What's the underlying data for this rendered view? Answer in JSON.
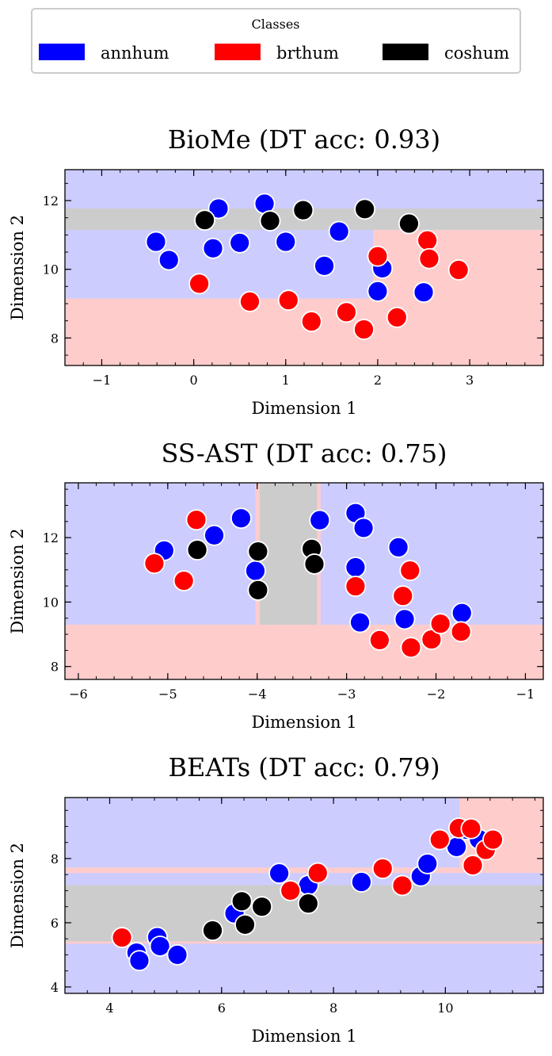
{
  "legend": {
    "title": "Classes",
    "entries": [
      {
        "label": "annhum",
        "color": "#0000ff"
      },
      {
        "label": "brthum",
        "color": "#ff0000"
      },
      {
        "label": "coshum",
        "color": "#000000"
      }
    ]
  },
  "region_colors": {
    "annhum": "#ccccff",
    "brthum": "#ffcccc",
    "coshum": "#cccccc"
  },
  "chart_data": [
    {
      "type": "scatter",
      "title": "BioMe (DT acc: 0.93)",
      "xlabel": "Dimension 1",
      "ylabel": "Dimension 2",
      "xlim": [
        -1.4,
        3.8
      ],
      "ylim": [
        7.2,
        12.9
      ],
      "xticks": [
        -1,
        0,
        1,
        2,
        3
      ],
      "yticks": [
        8,
        10,
        12
      ],
      "decision_regions": [
        {
          "class": "annhum",
          "x": [
            -1.4,
            3.8
          ],
          "y": [
            7.2,
            12.9
          ]
        },
        {
          "class": "brthum",
          "x": [
            -1.4,
            3.8
          ],
          "y": [
            7.2,
            9.15
          ]
        },
        {
          "class": "brthum",
          "x": [
            1.95,
            3.8
          ],
          "y": [
            9.15,
            11.15
          ]
        },
        {
          "class": "coshum",
          "x": [
            -1.4,
            3.8
          ],
          "y": [
            11.15,
            11.77
          ]
        }
      ],
      "series": [
        {
          "name": "annhum",
          "points": [
            [
              -0.41,
              10.8
            ],
            [
              -0.27,
              10.27
            ],
            [
              0.27,
              11.77
            ],
            [
              0.21,
              10.61
            ],
            [
              0.5,
              10.77
            ],
            [
              0.77,
              11.91
            ],
            [
              1.0,
              10.8
            ],
            [
              1.42,
              10.1
            ],
            [
              1.58,
              11.1
            ],
            [
              2.05,
              10.03
            ],
            [
              2.0,
              9.36
            ],
            [
              2.5,
              9.33
            ]
          ]
        },
        {
          "name": "brthum",
          "points": [
            [
              0.06,
              9.58
            ],
            [
              0.61,
              9.06
            ],
            [
              1.03,
              9.1
            ],
            [
              1.28,
              8.48
            ],
            [
              1.66,
              8.75
            ],
            [
              1.85,
              8.25
            ],
            [
              2.21,
              8.6
            ],
            [
              2.0,
              10.38
            ],
            [
              2.54,
              10.84
            ],
            [
              2.56,
              10.31
            ],
            [
              2.88,
              9.98
            ]
          ]
        },
        {
          "name": "coshum",
          "points": [
            [
              0.12,
              11.43
            ],
            [
              0.83,
              11.41
            ],
            [
              1.19,
              11.72
            ],
            [
              1.86,
              11.75
            ],
            [
              2.34,
              11.33
            ]
          ]
        }
      ]
    },
    {
      "type": "scatter",
      "title": "SS-AST (DT acc: 0.75)",
      "xlabel": "Dimension 1",
      "ylabel": "Dimension 2",
      "xlim": [
        -6.15,
        -0.8
      ],
      "ylim": [
        7.6,
        13.7
      ],
      "xticks": [
        -6,
        -5,
        -4,
        -3,
        -2,
        -1
      ],
      "yticks": [
        8,
        10,
        12
      ],
      "decision_regions": [
        {
          "class": "annhum",
          "x": [
            -6.15,
            -0.8
          ],
          "y": [
            7.6,
            13.7
          ]
        },
        {
          "class": "brthum",
          "x": [
            -6.15,
            -0.8
          ],
          "y": [
            7.6,
            9.3
          ]
        },
        {
          "class": "brthum",
          "x": [
            -4.02,
            -3.97
          ],
          "y": [
            9.3,
            13.7
          ]
        },
        {
          "class": "brthum",
          "x": [
            -3.33,
            -3.29
          ],
          "y": [
            9.3,
            13.7
          ]
        },
        {
          "class": "coshum",
          "x": [
            -3.97,
            -3.33
          ],
          "y": [
            9.3,
            13.7
          ]
        }
      ],
      "series": [
        {
          "name": "annhum",
          "points": [
            [
              -5.04,
              11.6
            ],
            [
              -4.48,
              12.07
            ],
            [
              -4.18,
              12.6
            ],
            [
              -4.02,
              10.97
            ],
            [
              -3.3,
              12.54
            ],
            [
              -2.9,
              12.76
            ],
            [
              -2.81,
              12.3
            ],
            [
              -2.9,
              11.08
            ],
            [
              -2.85,
              9.37
            ],
            [
              -2.42,
              11.7
            ],
            [
              -2.35,
              9.47
            ],
            [
              -1.71,
              9.66
            ]
          ]
        },
        {
          "name": "brthum",
          "points": [
            [
              -5.15,
              11.2
            ],
            [
              -4.68,
              12.55
            ],
            [
              -4.82,
              10.66
            ],
            [
              -2.9,
              10.49
            ],
            [
              -2.63,
              8.82
            ],
            [
              -2.37,
              10.19
            ],
            [
              -2.29,
              10.98
            ],
            [
              -2.28,
              8.59
            ],
            [
              -2.05,
              8.84
            ],
            [
              -1.95,
              9.33
            ],
            [
              -1.72,
              9.08
            ]
          ]
        },
        {
          "name": "coshum",
          "points": [
            [
              -4.67,
              11.62
            ],
            [
              -3.99,
              11.57
            ],
            [
              -3.99,
              10.37
            ],
            [
              -3.39,
              11.65
            ],
            [
              -3.36,
              11.18
            ]
          ]
        }
      ]
    },
    {
      "type": "scatter",
      "title": "BEATs (DT acc: 0.79)",
      "xlabel": "Dimension 1",
      "ylabel": "Dimension 2",
      "xlim": [
        3.2,
        11.75
      ],
      "ylim": [
        3.8,
        9.9
      ],
      "xticks": [
        4,
        6,
        8,
        10
      ],
      "yticks": [
        4,
        6,
        8
      ],
      "decision_regions": [
        {
          "class": "annhum",
          "x": [
            3.2,
            11.75
          ],
          "y": [
            3.8,
            9.9
          ]
        },
        {
          "class": "brthum",
          "x": [
            3.2,
            10.25
          ],
          "y": [
            7.55,
            7.72
          ]
        },
        {
          "class": "brthum",
          "x": [
            3.2,
            11.75
          ],
          "y": [
            5.35,
            5.42
          ]
        },
        {
          "class": "brthum",
          "x": [
            10.25,
            11.75
          ],
          "y": [
            7.55,
            9.9
          ]
        },
        {
          "class": "coshum",
          "x": [
            3.2,
            11.75
          ],
          "y": [
            5.42,
            7.17
          ]
        }
      ],
      "series": [
        {
          "name": "annhum",
          "points": [
            [
              4.48,
              5.07
            ],
            [
              4.53,
              4.82
            ],
            [
              4.85,
              5.55
            ],
            [
              4.9,
              5.27
            ],
            [
              5.21,
              5.0
            ],
            [
              6.23,
              6.29
            ],
            [
              7.03,
              7.54
            ],
            [
              7.55,
              7.17
            ],
            [
              8.5,
              7.27
            ],
            [
              9.56,
              7.45
            ],
            [
              9.68,
              7.84
            ],
            [
              10.2,
              8.36
            ],
            [
              10.38,
              8.9
            ],
            [
              10.6,
              8.6
            ]
          ]
        },
        {
          "name": "brthum",
          "points": [
            [
              4.22,
              5.54
            ],
            [
              7.23,
              7.0
            ],
            [
              7.72,
              7.55
            ],
            [
              8.88,
              7.69
            ],
            [
              9.23,
              7.16
            ],
            [
              9.9,
              8.59
            ],
            [
              10.24,
              8.95
            ],
            [
              10.46,
              8.93
            ],
            [
              10.49,
              7.79
            ],
            [
              10.72,
              8.27
            ],
            [
              10.85,
              8.59
            ]
          ]
        },
        {
          "name": "coshum",
          "points": [
            [
              5.84,
              5.76
            ],
            [
              6.36,
              6.67
            ],
            [
              6.42,
              5.94
            ],
            [
              6.72,
              6.5
            ],
            [
              7.55,
              6.6
            ]
          ]
        }
      ]
    }
  ]
}
